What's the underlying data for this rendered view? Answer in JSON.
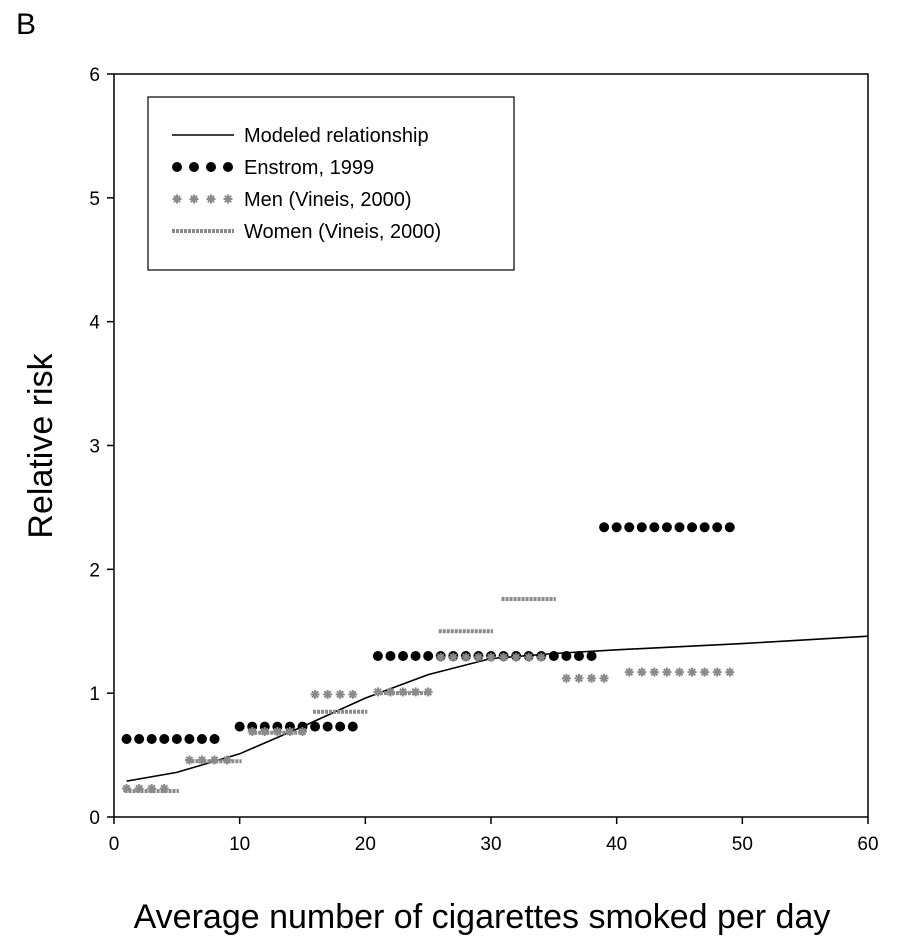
{
  "panel_label": "B",
  "chart_data": {
    "type": "scatter",
    "xlabel": "Average number of cigarettes smoked per day",
    "ylabel": "Relative risk",
    "xlim": [
      0,
      60
    ],
    "ylim": [
      0,
      6
    ],
    "xticks": [
      0,
      10,
      20,
      30,
      40,
      50,
      60
    ],
    "yticks": [
      0,
      1,
      2,
      3,
      4,
      5,
      6
    ],
    "grid": false,
    "legend_position": "top-left",
    "series": [
      {
        "name": "Modeled relationship",
        "style": "solid-line",
        "color": "#000000",
        "points": [
          [
            1,
            0.29
          ],
          [
            5,
            0.36
          ],
          [
            10,
            0.51
          ],
          [
            15,
            0.73
          ],
          [
            20,
            0.96
          ],
          [
            25,
            1.15
          ],
          [
            30,
            1.28
          ],
          [
            35,
            1.32
          ],
          [
            40,
            1.35
          ],
          [
            50,
            1.4
          ],
          [
            60,
            1.46
          ]
        ]
      },
      {
        "name": "Enstrom, 1999",
        "style": "black-dots",
        "color": "#000000",
        "segments": [
          {
            "x_from": 1,
            "x_to": 8,
            "y": 0.63
          },
          {
            "x_from": 10,
            "x_to": 19,
            "y": 0.73
          },
          {
            "x_from": 21,
            "x_to": 38,
            "y": 1.3
          },
          {
            "x_from": 39,
            "x_to": 49,
            "y": 2.34
          }
        ]
      },
      {
        "name": "Men (Vineis, 2000)",
        "style": "grey-stars",
        "color": "#8a8a8a",
        "segments": [
          {
            "x_from": 1,
            "x_to": 4,
            "y": 0.23
          },
          {
            "x_from": 6,
            "x_to": 9,
            "y": 0.46
          },
          {
            "x_from": 11,
            "x_to": 15,
            "y": 0.69
          },
          {
            "x_from": 16,
            "x_to": 19,
            "y": 0.99
          },
          {
            "x_from": 21,
            "x_to": 25,
            "y": 1.01
          },
          {
            "x_from": 26,
            "x_to": 34,
            "y": 1.29
          },
          {
            "x_from": 36,
            "x_to": 39,
            "y": 1.12
          },
          {
            "x_from": 41,
            "x_to": 49,
            "y": 1.17
          }
        ]
      },
      {
        "name": "Women (Vineis, 2000)",
        "style": "grey-dashes",
        "color": "#8a8a8a",
        "segments": [
          {
            "x_from": 1,
            "x_to": 5,
            "y": 0.21
          },
          {
            "x_from": 6,
            "x_to": 10,
            "y": 0.45
          },
          {
            "x_from": 11,
            "x_to": 15,
            "y": 0.68
          },
          {
            "x_from": 16,
            "x_to": 20,
            "y": 0.85
          },
          {
            "x_from": 21,
            "x_to": 25,
            "y": 1.0
          },
          {
            "x_from": 26,
            "x_to": 30,
            "y": 1.5
          },
          {
            "x_from": 31,
            "x_to": 35,
            "y": 1.76
          }
        ]
      }
    ]
  }
}
